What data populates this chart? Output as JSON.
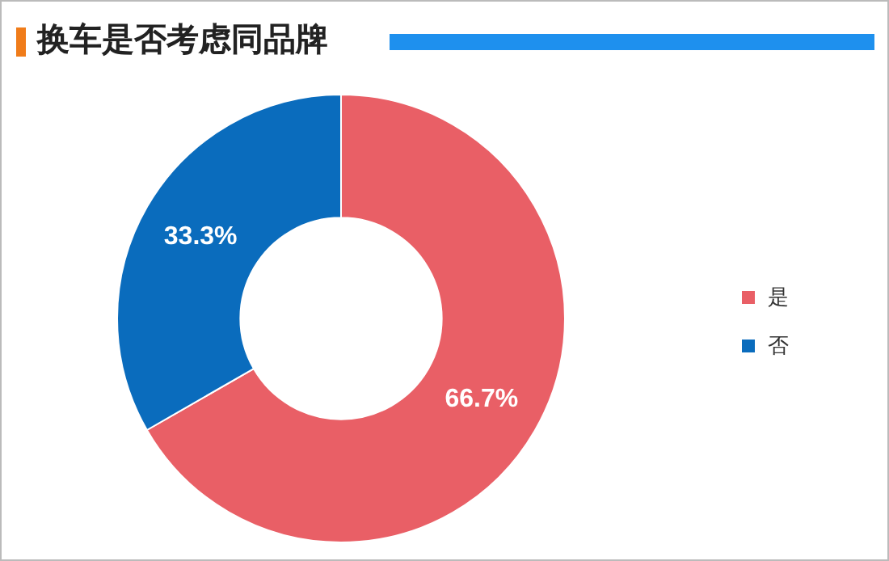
{
  "chart_data": {
    "type": "donut",
    "title": "换车是否考虑同品牌",
    "categories": [
      "是",
      "否"
    ],
    "values": [
      66.7,
      33.3
    ],
    "colors": [
      "#e95f66",
      "#0a6cbd"
    ],
    "value_labels": [
      "66.7%",
      "33.3%"
    ],
    "legend": "right"
  }
}
